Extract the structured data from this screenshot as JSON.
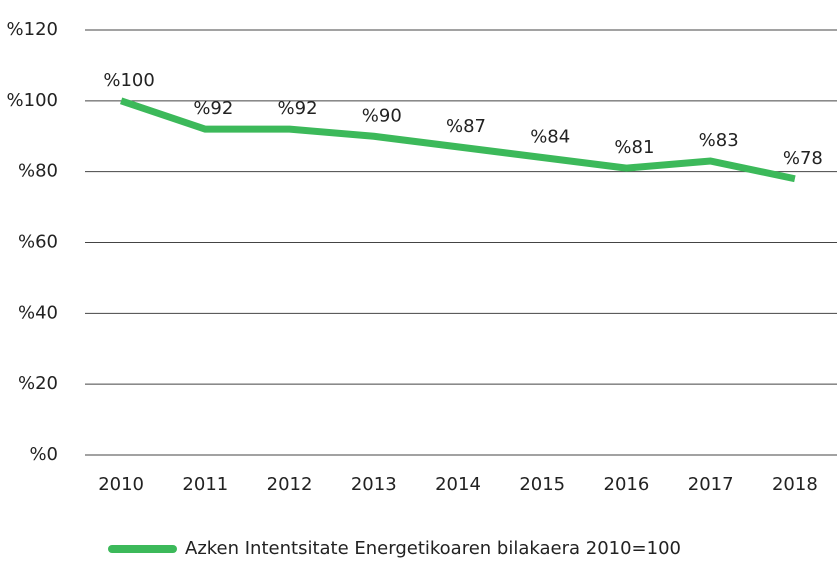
{
  "chart_data": {
    "type": "line",
    "categories": [
      "2010",
      "2011",
      "2012",
      "2013",
      "2014",
      "2015",
      "2016",
      "2017",
      "2018"
    ],
    "series": [
      {
        "name": "Azken Intentsitate Energetikoaren bilakaera 2010=100",
        "color": "#3cb95a",
        "values": [
          100,
          92,
          92,
          90,
          87,
          84,
          81,
          83,
          78
        ],
        "value_labels": [
          "%100",
          "%92",
          "%92",
          "%90",
          "%87",
          "%84",
          "%81",
          "%83",
          "%78"
        ]
      }
    ],
    "ylim": [
      0,
      120
    ],
    "yticks": [
      {
        "value": 0,
        "label": "%0"
      },
      {
        "value": 20,
        "label": "%20"
      },
      {
        "value": 40,
        "label": "%40"
      },
      {
        "value": 60,
        "label": "%60"
      },
      {
        "value": 80,
        "label": "%80"
      },
      {
        "value": 100,
        "label": "%100"
      },
      {
        "value": 120,
        "label": "%120"
      }
    ],
    "grid": true,
    "legend": "bottom"
  }
}
